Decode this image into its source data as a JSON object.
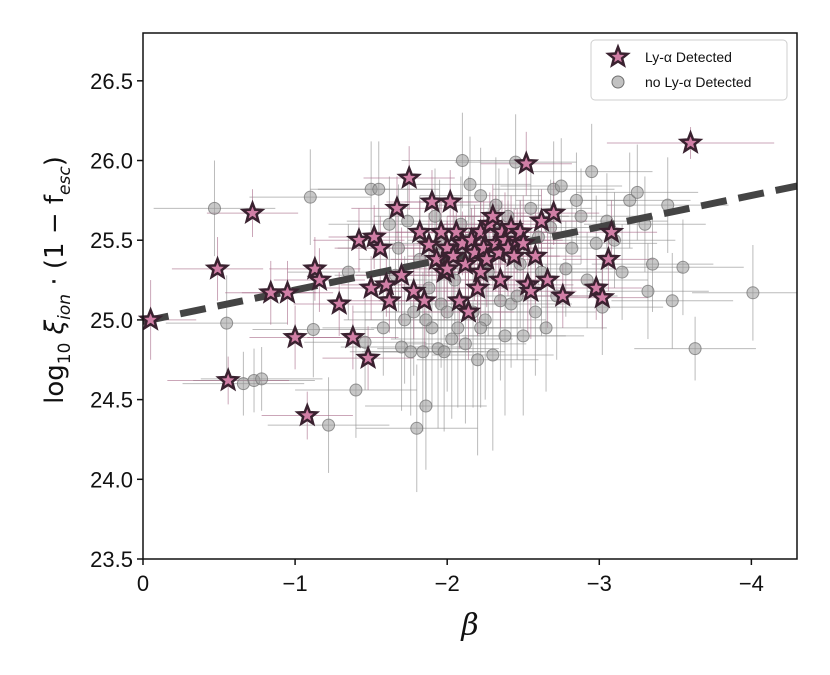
{
  "chart_data": {
    "type": "scatter",
    "title": "",
    "xlabel": "β",
    "ylabel_parts": {
      "prefix": "log",
      "sub": "10",
      "xi": " ξ",
      "xi_sub": "ion",
      "mid": " · (1 − f",
      "f_sub": "esc",
      "end": ")"
    },
    "xlim": [
      0,
      -4.3
    ],
    "ylim": [
      23.5,
      26.8
    ],
    "xticks": [
      0,
      -1,
      -2,
      -3,
      -4
    ],
    "xtick_labels": [
      "0",
      "−1",
      "−2",
      "−3",
      "−4"
    ],
    "yticks": [
      23.5,
      24.0,
      24.5,
      25.0,
      25.5,
      26.0,
      26.5
    ],
    "ytick_labels": [
      "23.5",
      "24.0",
      "24.5",
      "25.0",
      "25.5",
      "26.0",
      "26.5"
    ],
    "grid": false,
    "legend_position": "top-right",
    "fit_line": {
      "x": [
        0,
        -4.3
      ],
      "y": [
        24.99,
        25.84
      ],
      "style": "dashed",
      "color": "#444444"
    },
    "series": [
      {
        "name": "Ly-α Detected",
        "marker": "star",
        "color": "#d17fa6",
        "edge_color": "#3a2230",
        "err_color": "#a86a88",
        "points": [
          [
            -0.05,
            25.0,
            0.3,
            0.25
          ],
          [
            -0.49,
            25.32,
            0.3,
            0.2
          ],
          [
            -0.56,
            24.62,
            0.4,
            0.15
          ],
          [
            -0.72,
            25.67,
            0.3,
            0.15
          ],
          [
            -0.84,
            25.17,
            0.3,
            0.2
          ],
          [
            -0.95,
            25.17,
            0.3,
            0.2
          ],
          [
            -1.0,
            24.89,
            0.3,
            0.2
          ],
          [
            -1.08,
            24.4,
            0.3,
            0.15
          ],
          [
            -1.13,
            25.32,
            0.3,
            0.2
          ],
          [
            -1.16,
            25.25,
            0.3,
            0.2
          ],
          [
            -1.29,
            25.1,
            0.3,
            0.2
          ],
          [
            -1.38,
            24.89,
            0.3,
            0.2
          ],
          [
            -1.42,
            25.5,
            0.3,
            0.2
          ],
          [
            -1.48,
            24.76,
            0.3,
            0.2
          ],
          [
            -1.5,
            25.2,
            0.3,
            0.2
          ],
          [
            -1.52,
            25.52,
            0.3,
            0.2
          ],
          [
            -1.56,
            25.45,
            0.3,
            0.2
          ],
          [
            -1.6,
            25.22,
            0.3,
            0.2
          ],
          [
            -1.62,
            25.12,
            0.3,
            0.2
          ],
          [
            -1.67,
            25.7,
            0.3,
            0.2
          ],
          [
            -1.75,
            25.89,
            0.3,
            0.2
          ],
          [
            -1.78,
            25.18,
            0.3,
            0.3
          ],
          [
            -1.82,
            25.55,
            0.3,
            0.2
          ],
          [
            -1.85,
            25.12,
            0.3,
            0.3
          ],
          [
            -1.88,
            25.47,
            0.3,
            0.2
          ],
          [
            -1.9,
            25.74,
            0.3,
            0.2
          ],
          [
            -1.93,
            25.38,
            0.3,
            0.3
          ],
          [
            -1.96,
            25.55,
            0.3,
            0.2
          ],
          [
            -1.98,
            25.3,
            0.3,
            0.3
          ],
          [
            -2.0,
            25.45,
            0.3,
            0.2
          ],
          [
            -2.02,
            25.74,
            0.3,
            0.2
          ],
          [
            -2.04,
            25.4,
            0.3,
            0.3
          ],
          [
            -2.06,
            25.55,
            0.3,
            0.2
          ],
          [
            -2.08,
            25.12,
            0.3,
            0.3
          ],
          [
            -2.1,
            25.48,
            0.3,
            0.2
          ],
          [
            -2.12,
            25.35,
            0.3,
            0.3
          ],
          [
            -2.14,
            25.05,
            0.3,
            0.3
          ],
          [
            -2.16,
            25.5,
            0.3,
            0.2
          ],
          [
            -2.18,
            25.42,
            0.3,
            0.3
          ],
          [
            -2.2,
            25.2,
            0.3,
            0.3
          ],
          [
            -2.22,
            25.55,
            0.3,
            0.2
          ],
          [
            -2.24,
            25.45,
            0.3,
            0.3
          ],
          [
            -2.26,
            25.38,
            0.3,
            0.3
          ],
          [
            -2.28,
            25.6,
            0.3,
            0.2
          ],
          [
            -2.3,
            25.65,
            0.3,
            0.2
          ],
          [
            -2.32,
            25.48,
            0.3,
            0.3
          ],
          [
            -2.34,
            25.42,
            0.3,
            0.3
          ],
          [
            -2.36,
            25.55,
            0.3,
            0.2
          ],
          [
            -2.38,
            25.5,
            0.3,
            0.3
          ],
          [
            -2.4,
            25.45,
            0.3,
            0.3
          ],
          [
            -2.42,
            25.58,
            0.3,
            0.2
          ],
          [
            -2.44,
            25.4,
            0.3,
            0.3
          ],
          [
            -2.46,
            25.5,
            0.3,
            0.2
          ],
          [
            -2.48,
            25.55,
            0.3,
            0.2
          ],
          [
            -2.5,
            25.48,
            0.3,
            0.3
          ],
          [
            -2.52,
            25.98,
            0.3,
            0.2
          ],
          [
            -2.53,
            25.22,
            0.3,
            0.3
          ],
          [
            -2.55,
            25.18,
            0.3,
            0.3
          ],
          [
            -2.58,
            25.4,
            0.3,
            0.3
          ],
          [
            -2.62,
            25.62,
            0.3,
            0.2
          ],
          [
            -2.66,
            25.25,
            0.3,
            0.3
          ],
          [
            -2.7,
            25.67,
            0.3,
            0.2
          ],
          [
            -2.76,
            25.15,
            0.3,
            0.2
          ],
          [
            -2.98,
            25.2,
            0.3,
            0.2
          ],
          [
            -3.02,
            25.14,
            0.3,
            0.2
          ],
          [
            -3.06,
            25.38,
            0.3,
            0.2
          ],
          [
            -3.08,
            25.55,
            0.3,
            0.2
          ],
          [
            -3.6,
            26.11,
            0.55,
            0.1
          ],
          [
            -2.0,
            25.32,
            0.3,
            0.3
          ],
          [
            -2.22,
            25.3,
            0.3,
            0.3
          ],
          [
            -1.7,
            25.28,
            0.3,
            0.3
          ],
          [
            -2.35,
            25.25,
            0.3,
            0.3
          ]
        ]
      },
      {
        "name": "no Ly-α Detected",
        "marker": "circle",
        "color": "#9a9a9a",
        "edge_color": "#6f6f6f",
        "err_color": "#8e8e8e",
        "points": [
          [
            -0.47,
            25.7,
            0.4,
            0.3
          ],
          [
            -0.55,
            24.98,
            0.4,
            0.3
          ],
          [
            -0.66,
            24.6,
            0.4,
            0.2
          ],
          [
            -0.73,
            24.62,
            0.4,
            0.2
          ],
          [
            -0.78,
            24.63,
            0.4,
            0.2
          ],
          [
            -1.1,
            25.77,
            0.4,
            0.3
          ],
          [
            -1.12,
            24.94,
            0.4,
            0.3
          ],
          [
            -1.22,
            24.34,
            0.4,
            0.3
          ],
          [
            -1.35,
            25.3,
            0.4,
            0.3
          ],
          [
            -1.4,
            24.56,
            0.4,
            0.3
          ],
          [
            -1.46,
            24.86,
            0.4,
            0.3
          ],
          [
            -1.5,
            25.82,
            0.4,
            0.3
          ],
          [
            -1.55,
            25.82,
            0.4,
            0.3
          ],
          [
            -1.58,
            24.95,
            0.4,
            0.3
          ],
          [
            -1.62,
            25.6,
            0.4,
            0.3
          ],
          [
            -1.66,
            25.28,
            0.4,
            0.4
          ],
          [
            -1.7,
            24.83,
            0.4,
            0.4
          ],
          [
            -1.72,
            25.0,
            0.4,
            0.4
          ],
          [
            -1.74,
            25.62,
            0.4,
            0.3
          ],
          [
            -1.76,
            24.8,
            0.4,
            0.4
          ],
          [
            -1.78,
            25.05,
            0.4,
            0.4
          ],
          [
            -1.8,
            24.32,
            0.4,
            0.4
          ],
          [
            -1.82,
            25.38,
            0.4,
            0.4
          ],
          [
            -1.84,
            24.8,
            0.4,
            0.5
          ],
          [
            -1.86,
            24.46,
            0.4,
            0.4
          ],
          [
            -1.88,
            25.2,
            0.4,
            0.4
          ],
          [
            -1.9,
            24.95,
            0.4,
            0.5
          ],
          [
            -1.92,
            25.65,
            0.4,
            0.3
          ],
          [
            -1.94,
            24.82,
            0.4,
            0.5
          ],
          [
            -1.96,
            25.1,
            0.4,
            0.4
          ],
          [
            -1.98,
            24.8,
            0.4,
            0.5
          ],
          [
            -2.0,
            25.05,
            0.4,
            0.5
          ],
          [
            -2.03,
            24.88,
            0.4,
            0.5
          ],
          [
            -2.05,
            25.25,
            0.4,
            0.4
          ],
          [
            -2.07,
            24.95,
            0.4,
            0.5
          ],
          [
            -2.09,
            25.6,
            0.4,
            0.3
          ],
          [
            -2.1,
            26.0,
            0.4,
            0.3
          ],
          [
            -2.12,
            24.85,
            0.4,
            0.5
          ],
          [
            -2.15,
            25.85,
            0.4,
            0.3
          ],
          [
            -2.17,
            25.05,
            0.4,
            0.6
          ],
          [
            -2.2,
            24.75,
            0.4,
            0.6
          ],
          [
            -2.22,
            25.78,
            0.4,
            0.3
          ],
          [
            -2.25,
            25.0,
            0.4,
            0.5
          ],
          [
            -2.27,
            25.3,
            0.4,
            0.4
          ],
          [
            -2.3,
            24.78,
            0.4,
            0.6
          ],
          [
            -2.32,
            25.72,
            0.4,
            0.3
          ],
          [
            -2.35,
            25.12,
            0.4,
            0.5
          ],
          [
            -2.38,
            24.9,
            0.4,
            0.5
          ],
          [
            -2.4,
            25.65,
            0.4,
            0.3
          ],
          [
            -2.42,
            25.1,
            0.4,
            0.4
          ],
          [
            -2.45,
            25.99,
            0.4,
            0.3
          ],
          [
            -2.48,
            25.35,
            0.4,
            0.4
          ],
          [
            -2.5,
            24.9,
            0.4,
            0.5
          ],
          [
            -2.55,
            25.7,
            0.4,
            0.3
          ],
          [
            -2.58,
            25.05,
            0.4,
            0.4
          ],
          [
            -2.6,
            25.52,
            0.4,
            0.3
          ],
          [
            -2.65,
            24.95,
            0.4,
            0.4
          ],
          [
            -2.68,
            25.58,
            0.4,
            0.3
          ],
          [
            -2.7,
            25.82,
            0.4,
            0.3
          ],
          [
            -2.72,
            25.15,
            0.4,
            0.4
          ],
          [
            -2.75,
            25.84,
            0.4,
            0.3
          ],
          [
            -2.78,
            25.32,
            0.4,
            0.3
          ],
          [
            -2.82,
            25.45,
            0.4,
            0.3
          ],
          [
            -2.85,
            25.75,
            0.4,
            0.3
          ],
          [
            -2.88,
            25.65,
            0.4,
            0.3
          ],
          [
            -2.92,
            25.25,
            0.4,
            0.3
          ],
          [
            -2.95,
            25.93,
            0.4,
            0.3
          ],
          [
            -2.98,
            25.48,
            0.4,
            0.3
          ],
          [
            -3.02,
            25.08,
            0.4,
            0.3
          ],
          [
            -3.05,
            25.62,
            0.4,
            0.3
          ],
          [
            -3.1,
            25.5,
            0.4,
            0.3
          ],
          [
            -3.15,
            25.3,
            0.4,
            0.3
          ],
          [
            -3.2,
            25.75,
            0.4,
            0.3
          ],
          [
            -3.25,
            25.8,
            0.4,
            0.3
          ],
          [
            -3.3,
            25.6,
            0.4,
            0.3
          ],
          [
            -3.32,
            25.18,
            0.4,
            0.3
          ],
          [
            -3.35,
            25.35,
            0.4,
            0.3
          ],
          [
            -3.45,
            25.72,
            0.4,
            0.3
          ],
          [
            -3.48,
            25.12,
            0.4,
            0.3
          ],
          [
            -3.55,
            25.33,
            0.4,
            0.3
          ],
          [
            -3.63,
            24.82,
            0.4,
            0.2
          ],
          [
            -4.01,
            25.17,
            0.4,
            0.3
          ],
          [
            -1.95,
            25.48,
            0.4,
            0.4
          ],
          [
            -2.14,
            25.5,
            0.4,
            0.4
          ],
          [
            -2.34,
            25.55,
            0.4,
            0.4
          ],
          [
            -1.68,
            25.45,
            0.4,
            0.4
          ],
          [
            -2.62,
            25.3,
            0.4,
            0.4
          ],
          [
            -2.22,
            24.95,
            0.4,
            0.5
          ],
          [
            -1.86,
            25.0,
            0.4,
            0.5
          ],
          [
            -2.46,
            25.15,
            0.4,
            0.4
          ]
        ]
      }
    ]
  }
}
